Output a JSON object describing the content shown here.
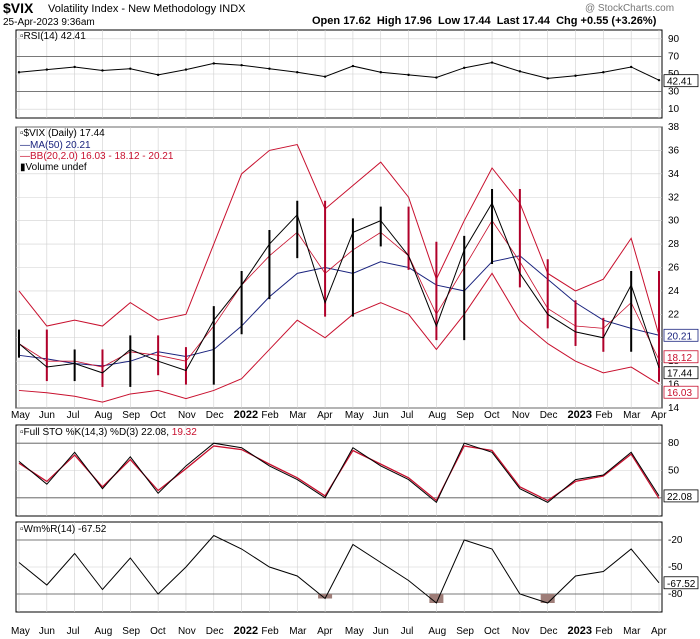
{
  "header": {
    "symbol": "$VIX",
    "name": "Volatility Index - New Methodology",
    "exchange": "INDX",
    "date": "25-Apr-2023 9:36am",
    "open_label": "Open",
    "open": "17.62",
    "high_label": "High",
    "high": "17.96",
    "low_label": "Low",
    "low": "17.44",
    "last_label": "Last",
    "last": "17.44",
    "chg_label": "Chg",
    "chg": "+0.55 (+3.26%)",
    "watermark": "@ StockCharts.com"
  },
  "panels": {
    "rsi": {
      "legend": "RSI(14) 42.41",
      "last": "42.41"
    },
    "price": {
      "legend_vix": "$VIX (Daily) 17.44",
      "legend_ma": "MA(50) 20.21",
      "legend_bb": "BB(20,2.0) 16.03 - 18.12 - 20.21",
      "legend_vol": "Volume undef",
      "tag_ma": "20.21",
      "tag_bb_mid": "18.12",
      "tag_last": "17.44",
      "tag_bb_low": "16.03"
    },
    "sto": {
      "legend_a": "Full STO %K(14,3) %D(3) 22.08,",
      "legend_b": "19.32",
      "last": "22.08"
    },
    "wmr": {
      "legend": "Wm%R(14) -67.52",
      "last": "-67.52"
    }
  },
  "x_axis": {
    "labels": [
      "May",
      "Jun",
      "Jul",
      "Aug",
      "Sep",
      "Oct",
      "Nov",
      "Dec",
      "2022",
      "Feb",
      "Mar",
      "Apr",
      "May",
      "Jun",
      "Jul",
      "Aug",
      "Sep",
      "Oct",
      "Nov",
      "Dec",
      "2023",
      "Feb",
      "Mar",
      "Apr"
    ],
    "bold": [
      "2022",
      "2023"
    ]
  },
  "colors": {
    "price_bar": "#000000",
    "price_down": "#b0002a",
    "bb": "#c8102e",
    "ma": "#1a237e",
    "sto_d": "#c8102e",
    "grid": "#d0d0d0",
    "wmr_fill": "#9e7d78",
    "tag_bg": "#ffffff"
  },
  "chart_data": [
    {
      "type": "line",
      "name": "RSI(14)",
      "ylim": [
        0,
        100
      ],
      "y_ticks": [
        10,
        30,
        50,
        70,
        90
      ],
      "reference_lines": [
        30,
        70
      ],
      "x": [
        "2021-05",
        "2021-06",
        "2021-07",
        "2021-08",
        "2021-09",
        "2021-10",
        "2021-11",
        "2021-12",
        "2022-01",
        "2022-02",
        "2022-03",
        "2022-04",
        "2022-05",
        "2022-06",
        "2022-07",
        "2022-08",
        "2022-09",
        "2022-10",
        "2022-11",
        "2022-12",
        "2023-01",
        "2023-02",
        "2023-03",
        "2023-04"
      ],
      "values": [
        52,
        55,
        58,
        54,
        56,
        49,
        55,
        62,
        60,
        56,
        52,
        47,
        59,
        52,
        49,
        46,
        57,
        63,
        53,
        45,
        48,
        52,
        58,
        43
      ],
      "last": 42.41
    },
    {
      "type": "line",
      "name": "$VIX (Daily)",
      "ylim": [
        14,
        38
      ],
      "y_ticks": [
        14,
        16,
        18,
        20,
        22,
        24,
        26,
        28,
        30,
        32,
        34,
        36,
        38
      ],
      "x": [
        "2021-05",
        "2021-06",
        "2021-07",
        "2021-08",
        "2021-09",
        "2021-10",
        "2021-11",
        "2021-12",
        "2022-01",
        "2022-02",
        "2022-03",
        "2022-04",
        "2022-05",
        "2022-06",
        "2022-07",
        "2022-08",
        "2022-09",
        "2022-10",
        "2022-11",
        "2022-12",
        "2023-01",
        "2023-02",
        "2023-03",
        "2023-04"
      ],
      "series": [
        {
          "name": "VIX",
          "values": [
            19.5,
            17.5,
            17.8,
            17.0,
            19.0,
            18.0,
            17.2,
            21.5,
            24.5,
            28.0,
            30.5,
            23.0,
            29.0,
            30.0,
            27.0,
            21.0,
            27.5,
            31.5,
            25.5,
            22.0,
            20.5,
            20.0,
            24.5,
            17.44
          ]
        },
        {
          "name": "MA(50)",
          "values": [
            18.5,
            18.2,
            17.8,
            17.6,
            18.0,
            18.8,
            18.4,
            19.0,
            21.0,
            23.5,
            25.5,
            26.0,
            25.5,
            26.5,
            26.0,
            24.5,
            24.0,
            26.5,
            27.0,
            25.0,
            23.0,
            21.5,
            20.8,
            20.21
          ]
        },
        {
          "name": "BB upper",
          "values": [
            24.0,
            21.0,
            21.5,
            21.0,
            23.0,
            21.5,
            22.0,
            28.0,
            34.0,
            36.0,
            36.5,
            31.0,
            33.0,
            35.0,
            32.0,
            25.0,
            30.0,
            34.5,
            31.5,
            25.5,
            24.0,
            25.0,
            28.5,
            20.21
          ]
        },
        {
          "name": "BB middle",
          "values": [
            19.5,
            18.0,
            18.0,
            17.5,
            18.8,
            18.5,
            18.0,
            21.0,
            24.5,
            27.0,
            29.0,
            25.5,
            27.5,
            29.0,
            27.0,
            22.0,
            26.0,
            30.0,
            26.5,
            22.5,
            21.0,
            20.8,
            23.0,
            18.12
          ]
        },
        {
          "name": "BB lower",
          "values": [
            15.5,
            15.3,
            15.0,
            14.5,
            15.2,
            15.5,
            14.8,
            15.5,
            16.5,
            19.0,
            21.5,
            20.0,
            22.0,
            23.0,
            22.0,
            19.0,
            22.0,
            25.5,
            21.5,
            19.5,
            18.0,
            17.0,
            17.5,
            16.03
          ]
        }
      ]
    },
    {
      "type": "line",
      "name": "Full STO %K(14,3) %D(3)",
      "ylim": [
        0,
        100
      ],
      "y_ticks": [
        20,
        50,
        80
      ],
      "reference_lines": [
        20,
        80
      ],
      "x": [
        "2021-05",
        "2021-06",
        "2021-07",
        "2021-08",
        "2021-09",
        "2021-10",
        "2021-11",
        "2021-12",
        "2022-01",
        "2022-02",
        "2022-03",
        "2022-04",
        "2022-05",
        "2022-06",
        "2022-07",
        "2022-08",
        "2022-09",
        "2022-10",
        "2022-11",
        "2022-12",
        "2023-01",
        "2023-02",
        "2023-03",
        "2023-04"
      ],
      "series": [
        {
          "name": "%K",
          "values": [
            60,
            35,
            70,
            30,
            65,
            25,
            55,
            80,
            75,
            55,
            40,
            20,
            75,
            55,
            40,
            15,
            80,
            70,
            30,
            15,
            40,
            45,
            70,
            22.08
          ]
        },
        {
          "name": "%D",
          "values": [
            58,
            38,
            67,
            32,
            62,
            28,
            52,
            77,
            73,
            57,
            42,
            22,
            72,
            57,
            42,
            17,
            77,
            72,
            32,
            17,
            38,
            44,
            68,
            19.32
          ]
        }
      ]
    },
    {
      "type": "line",
      "name": "Wm%R(14)",
      "ylim": [
        -100,
        0
      ],
      "y_ticks": [
        -80,
        -50,
        -20
      ],
      "reference_lines": [
        -20,
        -80
      ],
      "x": [
        "2021-05",
        "2021-06",
        "2021-07",
        "2021-08",
        "2021-09",
        "2021-10",
        "2021-11",
        "2021-12",
        "2022-01",
        "2022-02",
        "2022-03",
        "2022-04",
        "2022-05",
        "2022-06",
        "2022-07",
        "2022-08",
        "2022-09",
        "2022-10",
        "2022-11",
        "2022-12",
        "2023-01",
        "2023-02",
        "2023-03",
        "2023-04"
      ],
      "values": [
        -45,
        -70,
        -35,
        -75,
        -40,
        -80,
        -50,
        -15,
        -30,
        -50,
        -60,
        -85,
        -25,
        -45,
        -65,
        -90,
        -20,
        -30,
        -80,
        -90,
        -60,
        -55,
        -30,
        -67.52
      ]
    }
  ]
}
